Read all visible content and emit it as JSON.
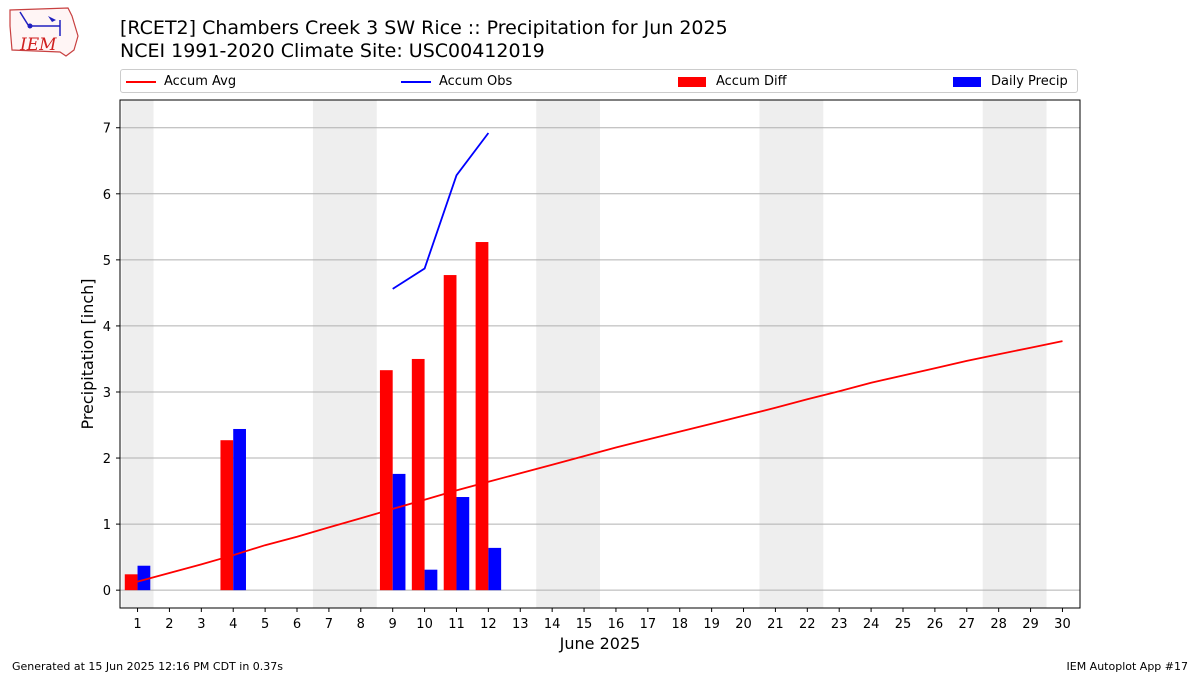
{
  "header": {
    "title_line1": "[RCET2] Chambers Creek 3 SW Rice :: Precipitation for Jun 2025",
    "title_line2": "NCEI 1991-2020 Climate Site: USC00412019"
  },
  "logo": {
    "text": "IEM"
  },
  "footer": {
    "generated": "Generated at 15 Jun 2025 12:16 PM CDT in 0.37s",
    "app": "IEM Autoplot App #17"
  },
  "colors": {
    "avg": "#ff0000",
    "obs": "#0000ff",
    "diff": "#ff0000",
    "daily": "#0000ff",
    "weekend_shade": "#eeeeee",
    "grid": "#b0b0b0"
  },
  "chart_data": {
    "type": "bar",
    "xlabel": "June 2025",
    "ylabel": "Precipitation [inch]",
    "ylim": [
      -0.27,
      7.42
    ],
    "xlim": [
      0.45,
      30.55
    ],
    "grid": "horizontal",
    "legend_position": "top",
    "x": [
      1,
      2,
      3,
      4,
      5,
      6,
      7,
      8,
      9,
      10,
      11,
      12,
      13,
      14,
      15,
      16,
      17,
      18,
      19,
      20,
      21,
      22,
      23,
      24,
      25,
      26,
      27,
      28,
      29,
      30
    ],
    "x_tick_labels": [
      "1",
      "2",
      "3",
      "4",
      "5",
      "6",
      "7",
      "8",
      "9",
      "10",
      "11",
      "12",
      "13",
      "14",
      "15",
      "16",
      "17",
      "18",
      "19",
      "20",
      "21",
      "22",
      "23",
      "24",
      "25",
      "26",
      "27",
      "28",
      "29",
      "30"
    ],
    "y_ticks": [
      0,
      1,
      2,
      3,
      4,
      5,
      6,
      7
    ],
    "y_tick_labels": [
      "0",
      "1",
      "2",
      "3",
      "4",
      "5",
      "6",
      "7"
    ],
    "weekend_spans": [
      [
        0.5,
        1.5
      ],
      [
        6.5,
        8.5
      ],
      [
        13.5,
        15.5
      ],
      [
        20.5,
        22.5
      ],
      [
        27.5,
        29.5
      ]
    ],
    "series": [
      {
        "name": "Accum Avg",
        "kind": "line",
        "x": [
          1,
          2,
          3,
          4,
          5,
          6,
          7,
          8,
          9,
          10,
          11,
          12,
          13,
          14,
          15,
          16,
          17,
          18,
          19,
          20,
          21,
          22,
          23,
          24,
          25,
          26,
          27,
          28,
          29,
          30
        ],
        "values": [
          0.13,
          0.26,
          0.39,
          0.53,
          0.68,
          0.81,
          0.95,
          1.09,
          1.23,
          1.37,
          1.51,
          1.64,
          1.77,
          1.9,
          2.03,
          2.16,
          2.28,
          2.4,
          2.52,
          2.64,
          2.76,
          2.89,
          3.01,
          3.14,
          3.25,
          3.36,
          3.47,
          3.57,
          3.67,
          3.77
        ]
      },
      {
        "name": "Accum Obs",
        "kind": "line",
        "x": [
          9,
          10,
          11,
          12
        ],
        "values": [
          4.56,
          4.87,
          6.28,
          6.92
        ]
      },
      {
        "name": "Accum Diff",
        "kind": "bar",
        "x": [
          1,
          4,
          9,
          10,
          11,
          12
        ],
        "values": [
          0.24,
          2.27,
          3.33,
          3.5,
          4.77,
          5.27
        ]
      },
      {
        "name": "Daily Precip",
        "kind": "bar",
        "x": [
          1,
          4,
          9,
          10,
          11,
          12
        ],
        "values": [
          0.37,
          2.44,
          1.76,
          0.31,
          1.41,
          0.64
        ]
      }
    ]
  }
}
